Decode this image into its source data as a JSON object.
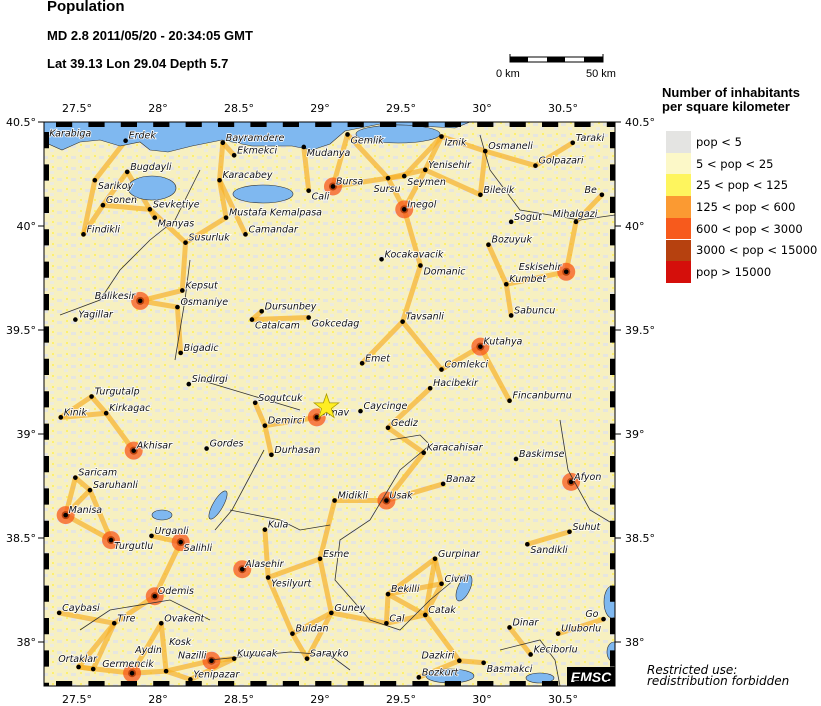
{
  "header": {
    "title": "Population",
    "event_line": "MD 2.8  2011/05/20 - 20:34:05 GMT",
    "location_line": "Lat 39.13    Lon  29.04    Depth  5.7"
  },
  "event": {
    "magnitude_type": "MD",
    "magnitude": 2.8,
    "lat": 39.13,
    "lon": 29.04,
    "depth": 5.7,
    "marker": "star-icon",
    "marker_color": "#ffee22"
  },
  "scale_bar": {
    "start_label": "0 km",
    "end_label": "50 km"
  },
  "map": {
    "lon_range": [
      27.3,
      30.82
    ],
    "lat_range": [
      37.78,
      40.5
    ],
    "lon_ticks": [
      "27.5°",
      "28°",
      "28.5°",
      "29°",
      "29.5°",
      "30°",
      "30.5°"
    ],
    "lon_tick_values": [
      27.5,
      28,
      28.5,
      29,
      29.5,
      30,
      30.5
    ],
    "lat_ticks": [
      "40.5°",
      "40°",
      "39.5°",
      "39°",
      "38.5°",
      "38°"
    ],
    "lat_tick_values": [
      40.5,
      40,
      39.5,
      39,
      38.5,
      38
    ],
    "water_color": "#7fb8f0",
    "land_color": "#f7f0c0",
    "cities": [
      {
        "name": "Karabiga",
        "lon": 27.31,
        "lat": 40.42
      },
      {
        "name": "Erdek",
        "lon": 27.8,
        "lat": 40.41
      },
      {
        "name": "Bayramdere",
        "lon": 28.4,
        "lat": 40.4
      },
      {
        "name": "Ekmekci",
        "lon": 28.47,
        "lat": 40.34
      },
      {
        "name": "Mudanya",
        "lon": 28.9,
        "lat": 40.38
      },
      {
        "name": "Gemlik",
        "lon": 29.17,
        "lat": 40.44
      },
      {
        "name": "Iznik",
        "lon": 29.75,
        "lat": 40.43
      },
      {
        "name": "Osmaneli",
        "lon": 30.02,
        "lat": 40.36
      },
      {
        "name": "Taraki",
        "lon": 30.56,
        "lat": 40.4
      },
      {
        "name": "Golpazari",
        "lon": 30.33,
        "lat": 40.29
      },
      {
        "name": "Sarikoy",
        "lon": 27.61,
        "lat": 40.22
      },
      {
        "name": "Bugdayli",
        "lon": 27.81,
        "lat": 40.26
      },
      {
        "name": "Karacabey",
        "lon": 28.38,
        "lat": 40.22
      },
      {
        "name": "Cali",
        "lon": 28.93,
        "lat": 40.17
      },
      {
        "name": "Bursa",
        "lon": 29.08,
        "lat": 40.19
      },
      {
        "name": "Sursu",
        "lon": 29.42,
        "lat": 40.23
      },
      {
        "name": "Seymen",
        "lon": 29.52,
        "lat": 40.24
      },
      {
        "name": "Yenisehir",
        "lon": 29.65,
        "lat": 40.27
      },
      {
        "name": "Bilecik",
        "lon": 29.99,
        "lat": 40.15
      },
      {
        "name": "Be",
        "lon": 30.74,
        "lat": 40.15
      },
      {
        "name": "Gonen",
        "lon": 27.66,
        "lat": 40.1
      },
      {
        "name": "Sevketiye",
        "lon": 27.95,
        "lat": 40.08
      },
      {
        "name": "Manyas",
        "lon": 27.98,
        "lat": 40.04
      },
      {
        "name": "Mustafa Kemalpasa",
        "lon": 28.42,
        "lat": 40.04
      },
      {
        "name": "Sogut",
        "lon": 30.18,
        "lat": 40.02
      },
      {
        "name": "Mihalgazi",
        "lon": 30.58,
        "lat": 40.02
      },
      {
        "name": "Inegol",
        "lon": 29.52,
        "lat": 40.08
      },
      {
        "name": "Findikli",
        "lon": 27.54,
        "lat": 39.96
      },
      {
        "name": "Camandar",
        "lon": 28.54,
        "lat": 39.96
      },
      {
        "name": "Susurluk",
        "lon": 28.17,
        "lat": 39.92
      },
      {
        "name": "Bozuyuk",
        "lon": 30.04,
        "lat": 39.91
      },
      {
        "name": "Kocakavacik",
        "lon": 29.38,
        "lat": 39.84
      },
      {
        "name": "Domanic",
        "lon": 29.62,
        "lat": 39.81
      },
      {
        "name": "Eskisehir",
        "lon": 30.52,
        "lat": 39.78
      },
      {
        "name": "Kumbet",
        "lon": 30.15,
        "lat": 39.72
      },
      {
        "name": "Kepsut",
        "lon": 28.15,
        "lat": 39.69
      },
      {
        "name": "Balikesir",
        "lon": 27.89,
        "lat": 39.64
      },
      {
        "name": "Osmaniye",
        "lon": 28.12,
        "lat": 39.61
      },
      {
        "name": "Dursunbey",
        "lon": 28.64,
        "lat": 39.59
      },
      {
        "name": "Catalcam",
        "lon": 28.58,
        "lat": 39.55
      },
      {
        "name": "Gokcedag",
        "lon": 28.93,
        "lat": 39.56
      },
      {
        "name": "Yagillar",
        "lon": 27.49,
        "lat": 39.55
      },
      {
        "name": "Tavsanli",
        "lon": 29.51,
        "lat": 39.54
      },
      {
        "name": "Sabuncu",
        "lon": 30.18,
        "lat": 39.57
      },
      {
        "name": "Kutahya",
        "lon": 29.99,
        "lat": 39.42
      },
      {
        "name": "Bigadic",
        "lon": 28.14,
        "lat": 39.39
      },
      {
        "name": "Emet",
        "lon": 29.26,
        "lat": 39.34
      },
      {
        "name": "Comlekci",
        "lon": 29.75,
        "lat": 39.31
      },
      {
        "name": "Sindirgi",
        "lon": 28.19,
        "lat": 39.24
      },
      {
        "name": "Hacibekir",
        "lon": 29.68,
        "lat": 39.22
      },
      {
        "name": "Turgutalp",
        "lon": 27.59,
        "lat": 39.18
      },
      {
        "name": "Fincanburnu",
        "lon": 30.17,
        "lat": 39.16
      },
      {
        "name": "Sogutcuk",
        "lon": 28.6,
        "lat": 39.15
      },
      {
        "name": "Kirkagac",
        "lon": 27.68,
        "lat": 39.1
      },
      {
        "name": "Kinik",
        "lon": 27.4,
        "lat": 39.08
      },
      {
        "name": "Simav",
        "lon": 28.98,
        "lat": 39.08
      },
      {
        "name": "Caycinge",
        "lon": 29.25,
        "lat": 39.11
      },
      {
        "name": "Demirci",
        "lon": 28.66,
        "lat": 39.04
      },
      {
        "name": "Gediz",
        "lon": 29.42,
        "lat": 39.03
      },
      {
        "name": "Akhisar",
        "lon": 27.85,
        "lat": 38.92
      },
      {
        "name": "Gordes",
        "lon": 28.3,
        "lat": 38.93
      },
      {
        "name": "Karacahisar",
        "lon": 29.64,
        "lat": 38.91
      },
      {
        "name": "Durhasan",
        "lon": 28.7,
        "lat": 38.9
      },
      {
        "name": "Baskimse",
        "lon": 30.21,
        "lat": 38.88
      },
      {
        "name": "Saricam",
        "lon": 27.49,
        "lat": 38.79
      },
      {
        "name": "Banaz",
        "lon": 29.76,
        "lat": 38.76
      },
      {
        "name": "Afyon",
        "lon": 30.55,
        "lat": 38.77
      },
      {
        "name": "Saruhanli",
        "lon": 27.58,
        "lat": 38.73
      },
      {
        "name": "Midikli",
        "lon": 29.09,
        "lat": 38.68
      },
      {
        "name": "Usak",
        "lon": 29.41,
        "lat": 38.68
      },
      {
        "name": "Manisa",
        "lon": 27.43,
        "lat": 38.61
      },
      {
        "name": "Kula",
        "lon": 28.66,
        "lat": 38.54
      },
      {
        "name": "Suhut",
        "lon": 30.54,
        "lat": 38.53
      },
      {
        "name": "Turgutlu",
        "lon": 27.71,
        "lat": 38.49
      },
      {
        "name": "Urganli",
        "lon": 27.96,
        "lat": 38.51
      },
      {
        "name": "Salihli",
        "lon": 28.14,
        "lat": 38.48
      },
      {
        "name": "Sandikli",
        "lon": 30.28,
        "lat": 38.47
      },
      {
        "name": "Gurpinar",
        "lon": 29.71,
        "lat": 38.4
      },
      {
        "name": "Esme",
        "lon": 29.0,
        "lat": 38.4
      },
      {
        "name": "Alasehir",
        "lon": 28.52,
        "lat": 38.35
      },
      {
        "name": "Yesilyurt",
        "lon": 28.68,
        "lat": 38.31
      },
      {
        "name": "Civril",
        "lon": 29.75,
        "lat": 38.28
      },
      {
        "name": "Odemis",
        "lon": 27.98,
        "lat": 38.22
      },
      {
        "name": "Bekilli",
        "lon": 29.42,
        "lat": 38.23
      },
      {
        "name": "Caybasi",
        "lon": 27.39,
        "lat": 38.14
      },
      {
        "name": "Guney",
        "lon": 29.07,
        "lat": 38.14
      },
      {
        "name": "Catak",
        "lon": 29.65,
        "lat": 38.13
      },
      {
        "name": "Go",
        "lon": 30.75,
        "lat": 38.11
      },
      {
        "name": "Tire",
        "lon": 27.73,
        "lat": 38.09
      },
      {
        "name": "Ovakent",
        "lon": 28.02,
        "lat": 38.09
      },
      {
        "name": "Cal",
        "lon": 29.41,
        "lat": 38.09
      },
      {
        "name": "Dinar",
        "lon": 30.17,
        "lat": 38.07
      },
      {
        "name": "Uluborlu",
        "lon": 30.47,
        "lat": 38.04
      },
      {
        "name": "Buldan",
        "lon": 28.83,
        "lat": 38.04
      },
      {
        "name": "Sarayko",
        "lon": 28.92,
        "lat": 37.92
      },
      {
        "name": "Nazilli",
        "lon": 28.33,
        "lat": 37.91
      },
      {
        "name": "Kuyucak",
        "lon": 28.47,
        "lat": 37.92
      },
      {
        "name": "Keciborlu",
        "lon": 30.3,
        "lat": 37.94
      },
      {
        "name": "Basmakci",
        "lon": 30.01,
        "lat": 37.9
      },
      {
        "name": "Ortaklar",
        "lon": 27.51,
        "lat": 37.88
      },
      {
        "name": "Germencik",
        "lon": 27.6,
        "lat": 37.87
      },
      {
        "name": "Aydin",
        "lon": 27.84,
        "lat": 37.85
      },
      {
        "name": "Kosk",
        "lon": 28.05,
        "lat": 37.86
      },
      {
        "name": "Yenipazar",
        "lon": 28.2,
        "lat": 37.82
      },
      {
        "name": "Dazkiri",
        "lon": 29.86,
        "lat": 37.91
      },
      {
        "name": "Bozkurt",
        "lon": 29.61,
        "lat": 37.83
      }
    ]
  },
  "legend": {
    "title_line1": "Number of inhabitants",
    "title_line2": "per square kilometer",
    "classes": [
      {
        "label": "pop < 5",
        "color": "#e4e4e2"
      },
      {
        "label": "5 < pop < 25",
        "color": "#fcf8c8"
      },
      {
        "label": "25 < pop < 125",
        "color": "#fef55e"
      },
      {
        "label": "125 < pop < 600",
        "color": "#fb9a32"
      },
      {
        "label": "600 < pop < 3000",
        "color": "#f75a1c"
      },
      {
        "label": "3000 < pop < 15000",
        "color": "#b6410f"
      },
      {
        "label": "pop > 15000",
        "color": "#d50f0b"
      }
    ]
  },
  "footer": {
    "logo": "EMSC",
    "note_line1": "Restricted use:",
    "note_line2": "redistribution forbidden"
  }
}
